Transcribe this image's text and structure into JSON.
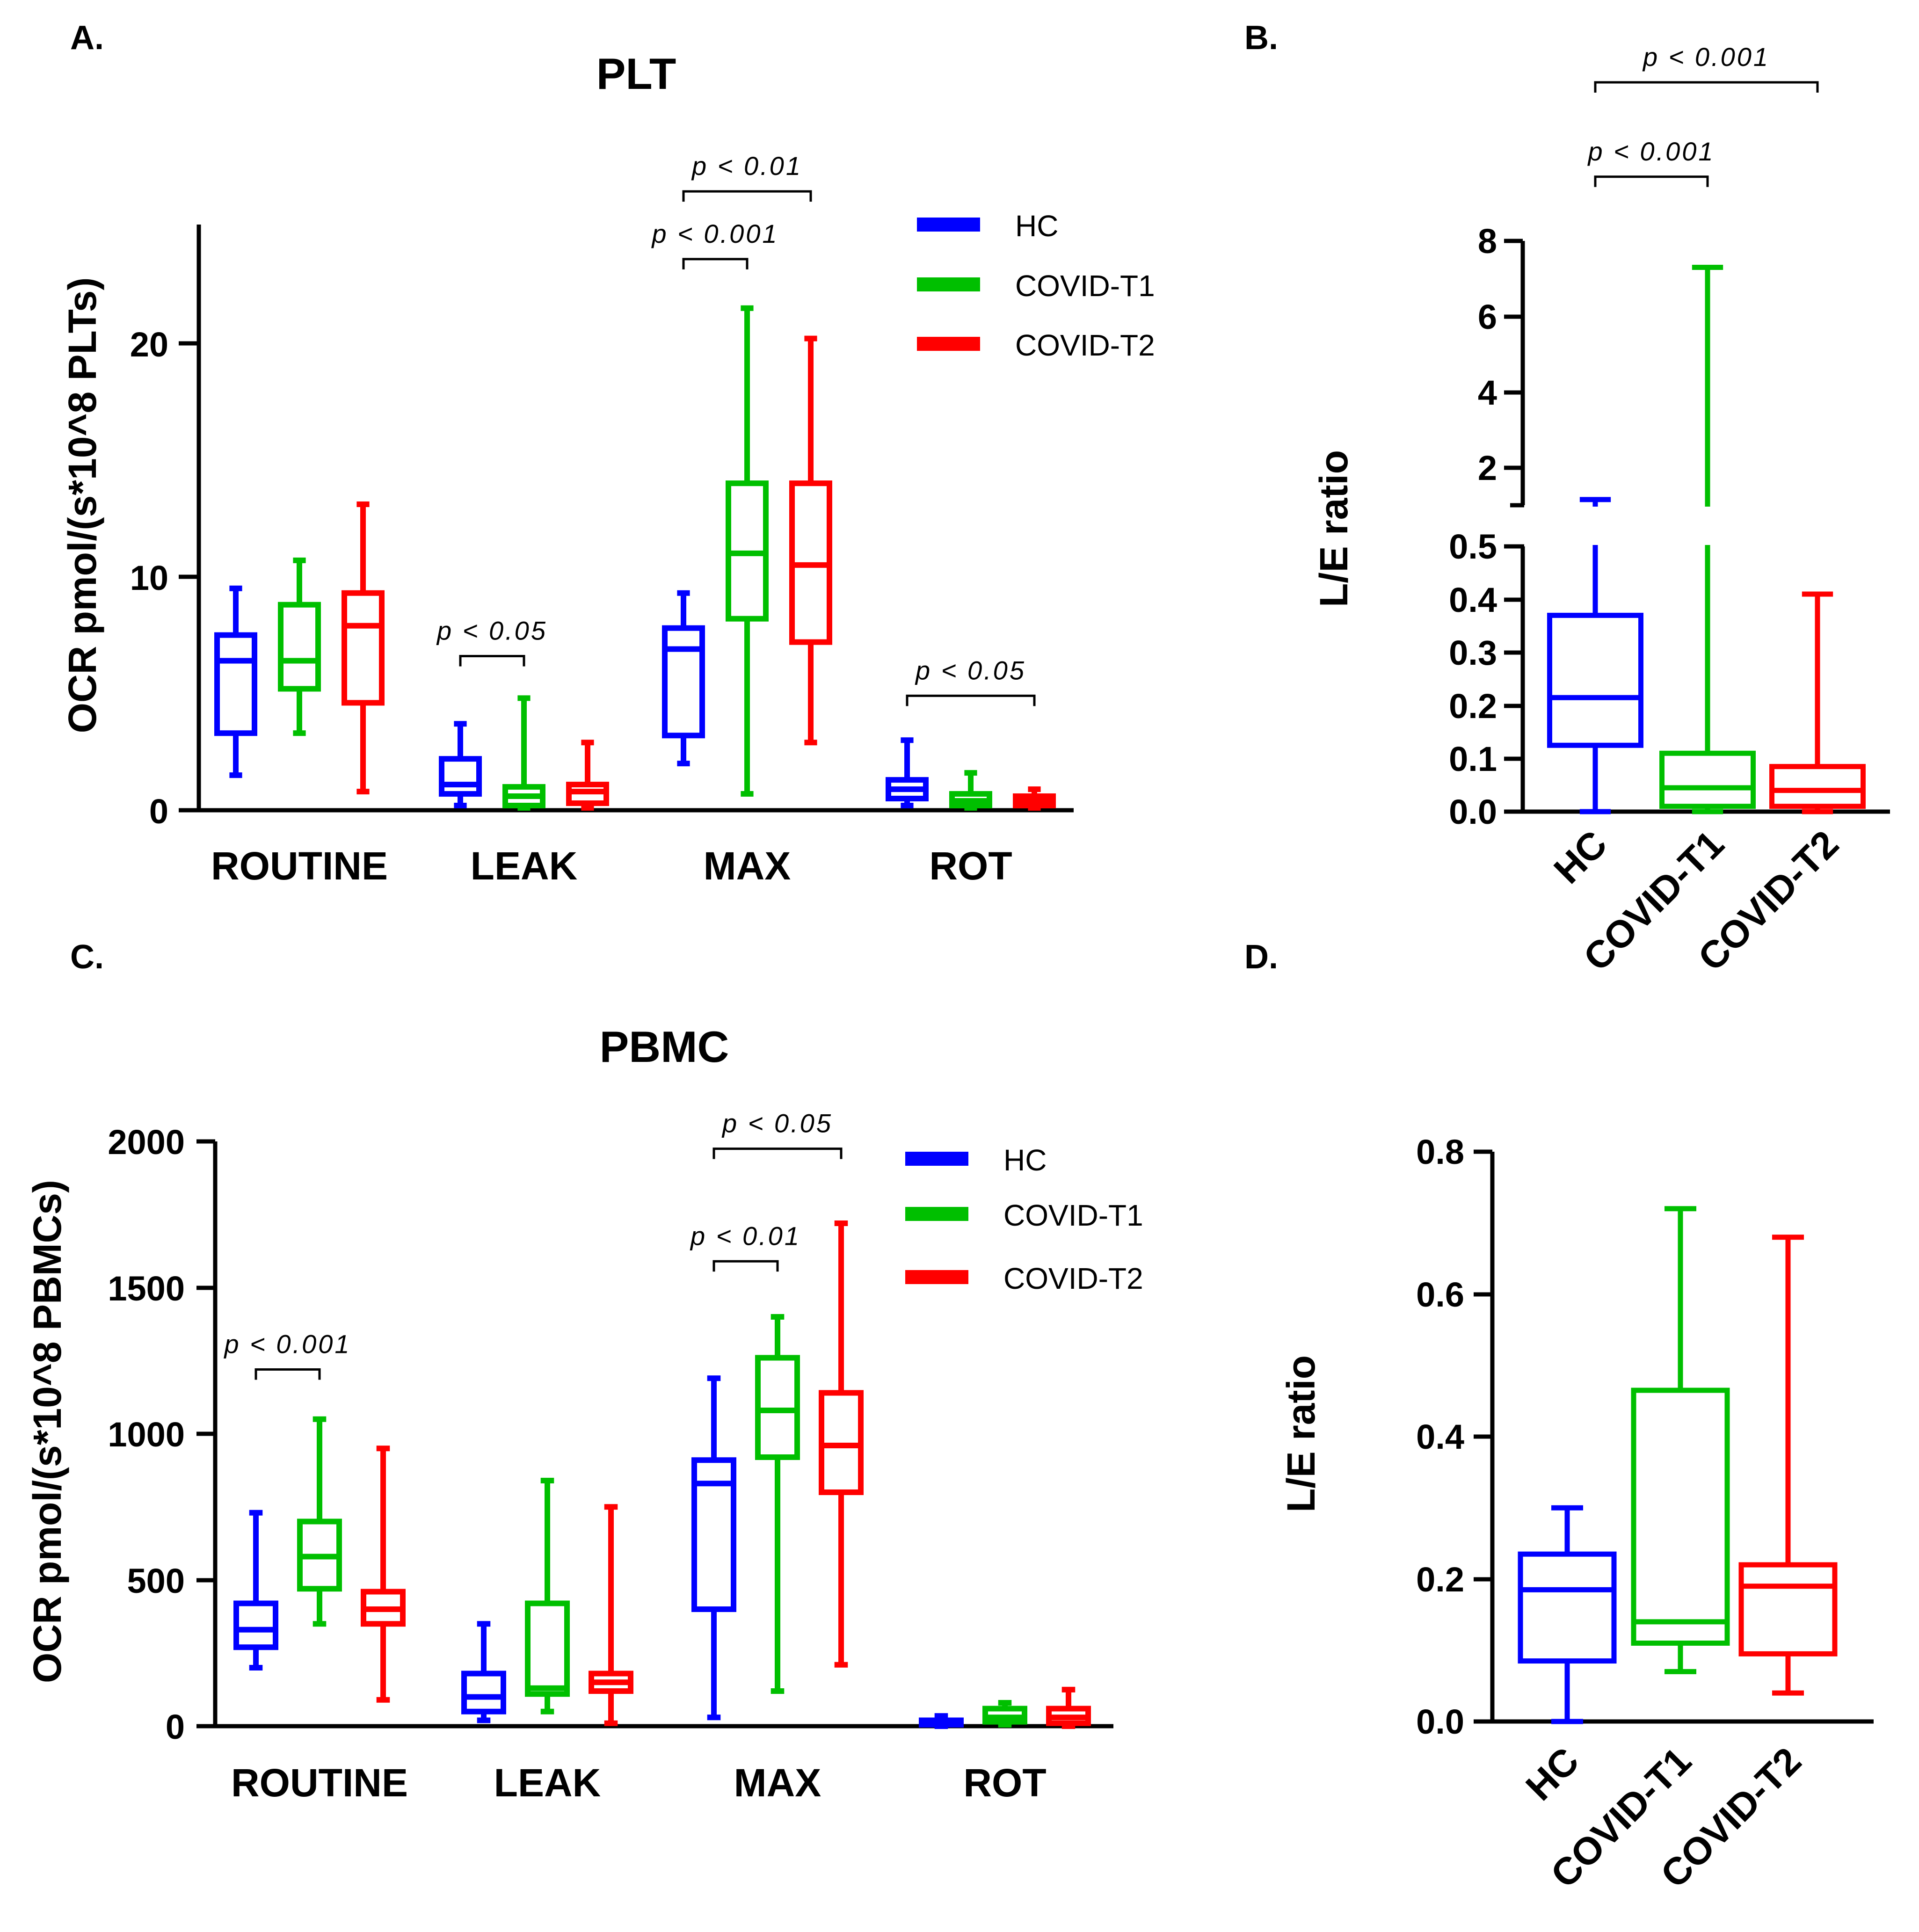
{
  "colors": {
    "HC": "#0000ff",
    "COVID-T1": "#00bf00",
    "COVID-T2": "#ff0000",
    "axis": "#000000"
  },
  "chart_data": [
    {
      "panel": "A.",
      "type": "box",
      "title": "PLT",
      "ylabel": "OCR pmol/(s*10^8 PLTs)",
      "xlabel": "",
      "ylim": [
        0,
        25
      ],
      "yticks": [
        "0",
        "10",
        "20"
      ],
      "categories": [
        "ROUTINE",
        "LEAK",
        "MAX",
        "ROT"
      ],
      "legend": {
        "position": "top-right",
        "labels": [
          "HC",
          "COVID-T1",
          "COVID-T2"
        ]
      },
      "series": [
        {
          "name": "HC",
          "boxes": [
            {
              "min": 1.5,
              "q1": 3.3,
              "median": 6.4,
              "q3": 7.5,
              "max": 9.5
            },
            {
              "min": 0.2,
              "q1": 0.7,
              "median": 1.1,
              "q3": 2.2,
              "max": 3.7
            },
            {
              "min": 2.0,
              "q1": 3.2,
              "median": 6.9,
              "q3": 7.8,
              "max": 9.3
            },
            {
              "min": 0.2,
              "q1": 0.5,
              "median": 0.9,
              "q3": 1.3,
              "max": 3.0
            }
          ]
        },
        {
          "name": "COVID-T1",
          "boxes": [
            {
              "min": 3.3,
              "q1": 5.2,
              "median": 6.4,
              "q3": 8.8,
              "max": 10.7
            },
            {
              "min": 0.1,
              "q1": 0.2,
              "median": 0.6,
              "q3": 1.0,
              "max": 4.8
            },
            {
              "min": 0.7,
              "q1": 8.2,
              "median": 11.0,
              "q3": 14.0,
              "max": 21.5
            },
            {
              "min": 0.1,
              "q1": 0.2,
              "median": 0.4,
              "q3": 0.7,
              "max": 1.6
            }
          ]
        },
        {
          "name": "COVID-T2",
          "boxes": [
            {
              "min": 0.8,
              "q1": 4.6,
              "median": 7.9,
              "q3": 9.3,
              "max": 13.1
            },
            {
              "min": 0.1,
              "q1": 0.3,
              "median": 0.8,
              "q3": 1.1,
              "max": 2.9
            },
            {
              "min": 2.9,
              "q1": 7.2,
              "median": 10.5,
              "q3": 14.0,
              "max": 20.2
            },
            {
              "min": 0.1,
              "q1": 0.2,
              "median": 0.4,
              "q3": 0.6,
              "max": 0.9
            }
          ]
        }
      ],
      "annotations": [
        {
          "text": "p < 0.05",
          "category": 1,
          "from": 0,
          "to": 1,
          "level": 6.6
        },
        {
          "text": "p < 0.001",
          "category": 2,
          "from": 0,
          "to": 1,
          "level": 23.6
        },
        {
          "text": "p < 0.01",
          "category": 2,
          "from": 0,
          "to": 2,
          "level": 26.5
        },
        {
          "text": "p < 0.05",
          "category": 3,
          "from": 0,
          "to": 2,
          "level": 4.9
        }
      ]
    },
    {
      "panel": "B.",
      "type": "box",
      "title": "",
      "ylabel": "L/E ratio",
      "xlabel": "",
      "broken_axis": true,
      "lower_range": [
        0,
        0.5
      ],
      "upper_range": [
        1,
        8
      ],
      "yticks_lower": [
        "0.0",
        "0.1",
        "0.2",
        "0.3",
        "0.4",
        "0.5"
      ],
      "yticks_upper": [
        "2",
        "4",
        "6",
        "8"
      ],
      "categories": [
        "HC",
        "COVID-T1",
        "COVID-T2"
      ],
      "boxes": [
        {
          "min": 0.0,
          "q1": 0.125,
          "median": 0.215,
          "q3": 0.37,
          "max": 1.15
        },
        {
          "min": 0.0,
          "q1": 0.01,
          "median": 0.045,
          "q3": 0.11,
          "max": 7.3
        },
        {
          "min": 0.0,
          "q1": 0.01,
          "median": 0.04,
          "q3": 0.085,
          "max": 0.41
        }
      ],
      "annotations": [
        {
          "text": "p < 0.001",
          "from": 0,
          "to": 1,
          "level": 9.7
        },
        {
          "text": "p < 0.001",
          "from": 0,
          "to": 2,
          "level": 12.2
        }
      ]
    },
    {
      "panel": "C.",
      "type": "box",
      "title": "PBMC",
      "ylabel": "OCR pmol/(s*10^8 PBMCs)",
      "xlabel": "",
      "ylim": [
        0,
        2000
      ],
      "yticks": [
        "0",
        "500",
        "1000",
        "1500",
        "2000"
      ],
      "categories": [
        "ROUTINE",
        "LEAK",
        "MAX",
        "ROT"
      ],
      "legend": {
        "position": "top-right",
        "labels": [
          "HC",
          "COVID-T1",
          "COVID-T2"
        ]
      },
      "series": [
        {
          "name": "HC",
          "boxes": [
            {
              "min": 200,
              "q1": 270,
              "median": 330,
              "q3": 420,
              "max": 730
            },
            {
              "min": 20,
              "q1": 50,
              "median": 100,
              "q3": 180,
              "max": 350
            },
            {
              "min": 30,
              "q1": 400,
              "median": 830,
              "q3": 910,
              "max": 1190
            },
            {
              "min": 0,
              "q1": 5,
              "median": 10,
              "q3": 20,
              "max": 35
            }
          ]
        },
        {
          "name": "COVID-T1",
          "boxes": [
            {
              "min": 350,
              "q1": 470,
              "median": 580,
              "q3": 700,
              "max": 1050
            },
            {
              "min": 50,
              "q1": 110,
              "median": 130,
              "q3": 420,
              "max": 840
            },
            {
              "min": 120,
              "q1": 920,
              "median": 1080,
              "q3": 1260,
              "max": 1400
            },
            {
              "min": 5,
              "q1": 15,
              "median": 30,
              "q3": 60,
              "max": 80
            }
          ]
        },
        {
          "name": "COVID-T2",
          "boxes": [
            {
              "min": 90,
              "q1": 350,
              "median": 400,
              "q3": 460,
              "max": 950
            },
            {
              "min": 10,
              "q1": 120,
              "median": 150,
              "q3": 180,
              "max": 750
            },
            {
              "min": 210,
              "q1": 800,
              "median": 960,
              "q3": 1140,
              "max": 1720
            },
            {
              "min": 0,
              "q1": 10,
              "median": 30,
              "q3": 60,
              "max": 125
            }
          ]
        }
      ],
      "annotations": [
        {
          "text": "p < 0.001",
          "category": 0,
          "from": 0,
          "to": 1,
          "level": 1220
        },
        {
          "text": "p < 0.01",
          "category": 2,
          "from": 0,
          "to": 1,
          "level": 1590
        },
        {
          "text": "p < 0.05",
          "category": 2,
          "from": 0,
          "to": 2,
          "level": 1975
        }
      ]
    },
    {
      "panel": "D.",
      "type": "box",
      "title": "",
      "ylabel": "L/E ratio",
      "xlabel": "",
      "ylim": [
        0,
        0.8
      ],
      "yticks": [
        "0.0",
        "0.2",
        "0.4",
        "0.6",
        "0.8"
      ],
      "categories": [
        "HC",
        "COVID-T1",
        "COVID-T2"
      ],
      "boxes": [
        {
          "min": 0.0,
          "q1": 0.085,
          "median": 0.185,
          "q3": 0.235,
          "max": 0.3
        },
        {
          "min": 0.07,
          "q1": 0.11,
          "median": 0.14,
          "q3": 0.465,
          "max": 0.72
        },
        {
          "min": 0.04,
          "q1": 0.095,
          "median": 0.19,
          "q3": 0.22,
          "max": 0.68
        }
      ],
      "annotations": []
    }
  ]
}
